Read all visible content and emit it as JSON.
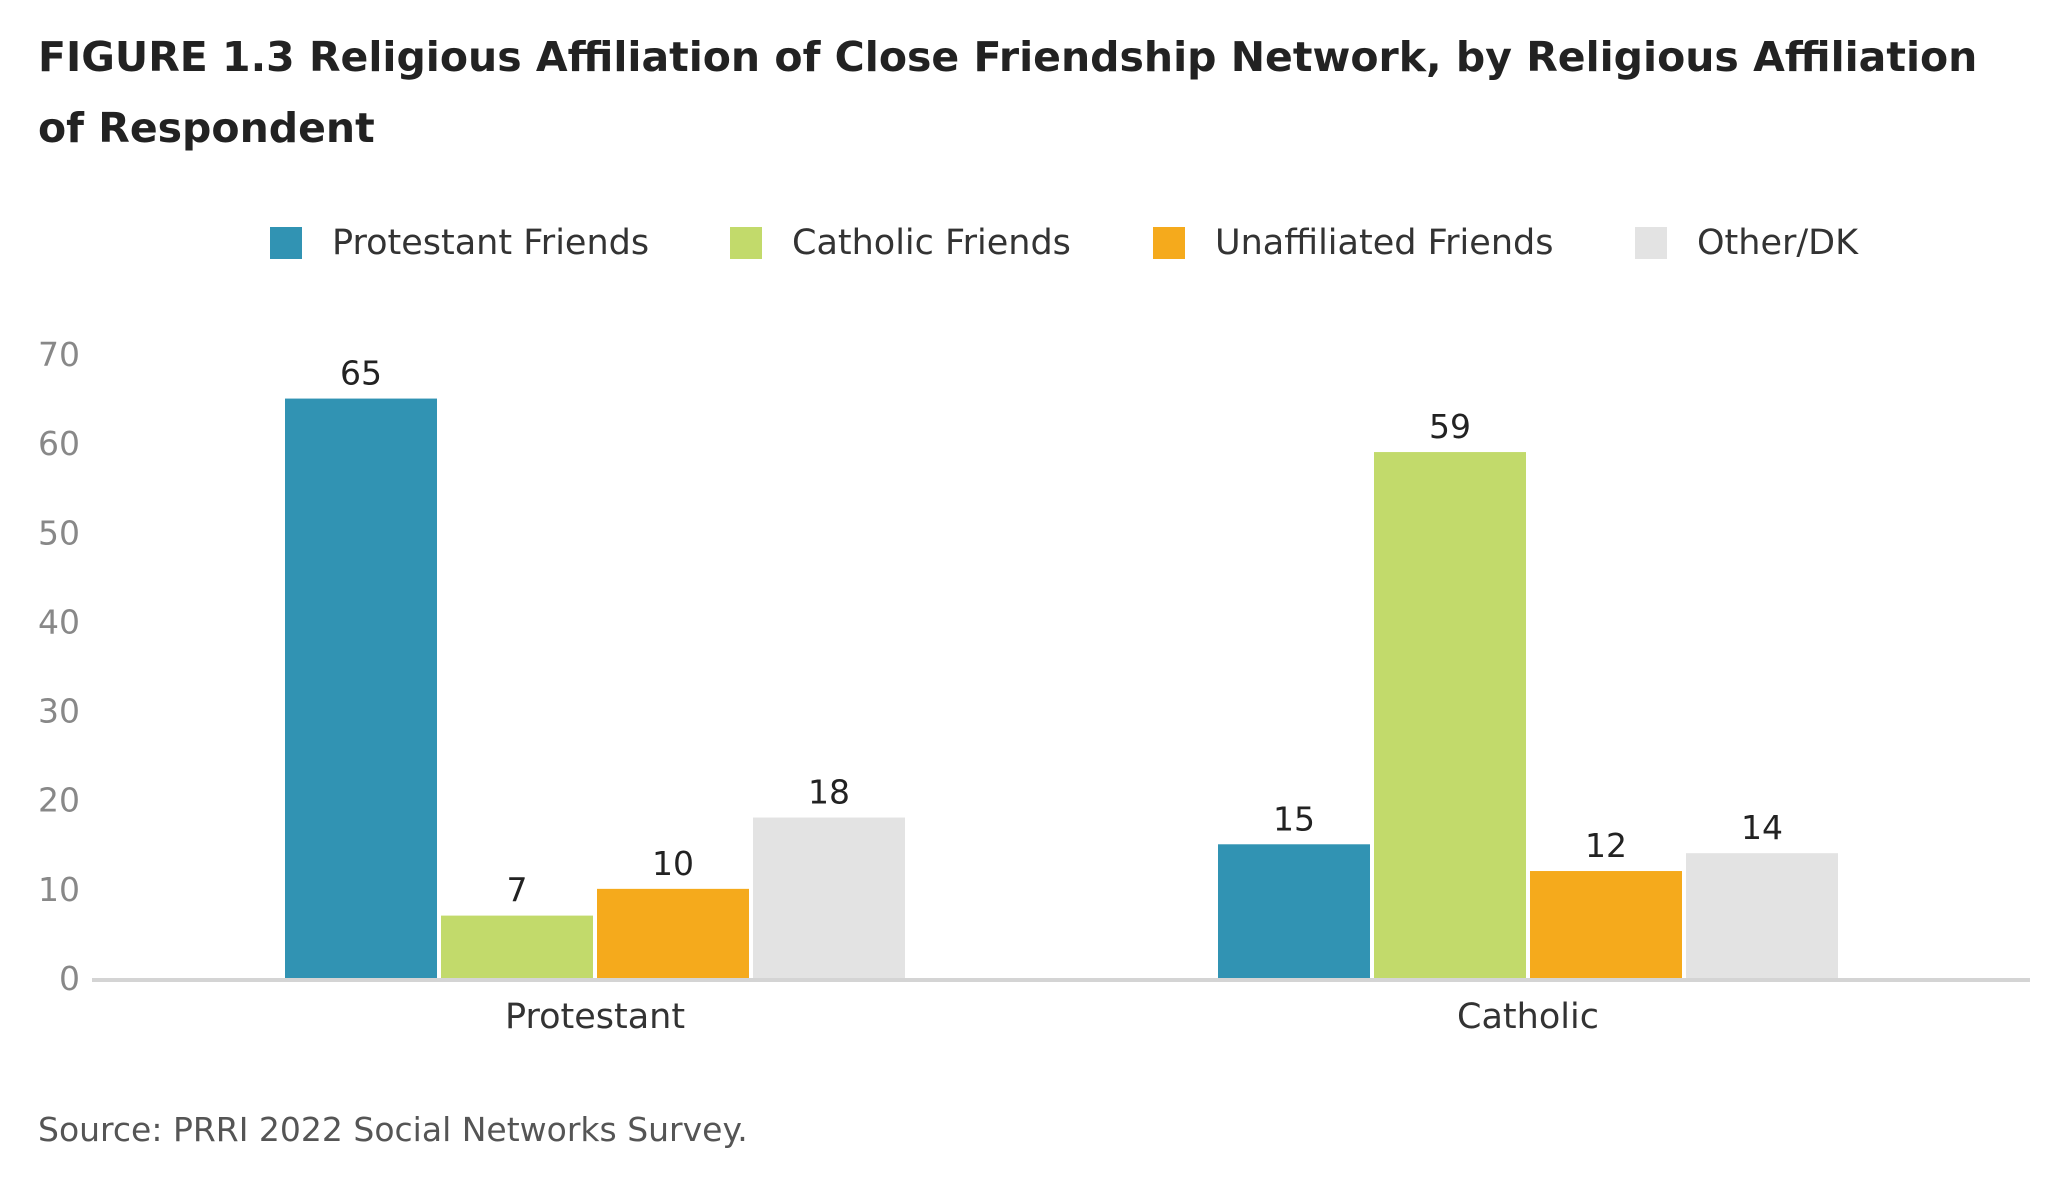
{
  "figure_title": "FIGURE 1.3  Religious Affiliation of Close Friendship Network, by Religious Affiliation of Respondent",
  "source": "Source: PRRI 2022 Social Networks Survey.",
  "chart_data": {
    "type": "bar",
    "title": "FIGURE 1.3  Religious Affiliation of Close Friendship Network, by Religious Affiliation of Respondent",
    "categories": [
      "Protestant",
      "Catholic"
    ],
    "series": [
      {
        "name": "Protestant Friends",
        "color": "#3193b3",
        "values": [
          65,
          15
        ]
      },
      {
        "name": "Catholic Friends",
        "color": "#c2da6b",
        "values": [
          7,
          59
        ]
      },
      {
        "name": "Unaffiliated Friends",
        "color": "#f5aa1c",
        "values": [
          10,
          12
        ]
      },
      {
        "name": "Other/DK",
        "color": "#e3e3e3",
        "values": [
          18,
          14
        ]
      }
    ],
    "ylim": [
      0,
      70
    ],
    "yticks": [
      0,
      10,
      20,
      30,
      40,
      50,
      60,
      70
    ],
    "xlabel": "",
    "ylabel": "",
    "grid": false,
    "legend_position": "top",
    "data_labels": true
  }
}
